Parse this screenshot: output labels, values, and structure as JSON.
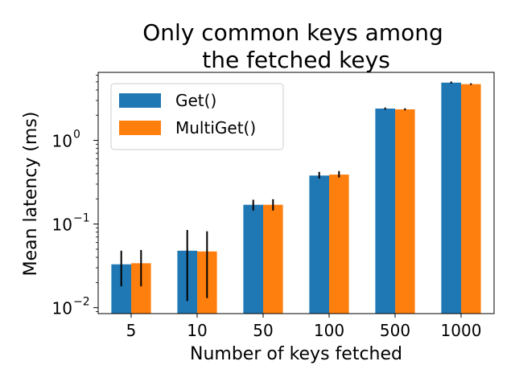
{
  "chart_data": {
    "type": "bar",
    "title": [
      "Only common keys among",
      "the fetched keys"
    ],
    "xlabel": "Number of keys fetched",
    "ylabel": "Mean latency (ms)",
    "yscale": "log",
    "ylim": [
      0.0085,
      6.5
    ],
    "yticks": [
      {
        "value": 0.01,
        "base": "10",
        "exp": "−2"
      },
      {
        "value": 0.1,
        "base": "10",
        "exp": "−1"
      },
      {
        "value": 1,
        "base": "10",
        "exp": "0"
      }
    ],
    "categories": [
      "5",
      "10",
      "50",
      "100",
      "500",
      "1000"
    ],
    "series": [
      {
        "name": "Get()",
        "color": "#1f77b4",
        "values": [
          0.033,
          0.048,
          0.17,
          0.38,
          2.4,
          4.9
        ],
        "err_low": [
          0.018,
          0.012,
          0.145,
          0.35,
          2.33,
          4.78
        ],
        "err_high": [
          0.048,
          0.085,
          0.195,
          0.42,
          2.47,
          5.05
        ]
      },
      {
        "name": "MultiGet()",
        "color": "#ff7f0e",
        "values": [
          0.034,
          0.047,
          0.17,
          0.39,
          2.35,
          4.7
        ],
        "err_low": [
          0.018,
          0.013,
          0.145,
          0.36,
          2.28,
          4.6
        ],
        "err_high": [
          0.049,
          0.082,
          0.198,
          0.43,
          2.42,
          4.82
        ]
      }
    ],
    "legend": {
      "placement": "top-left"
    },
    "grid": false
  }
}
